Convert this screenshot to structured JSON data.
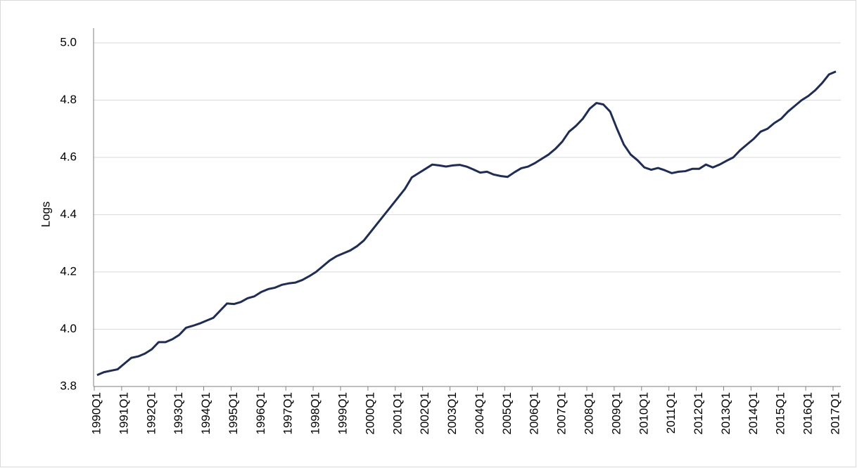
{
  "chart_data": {
    "type": "line",
    "y_label": "Logs",
    "categories": [
      "1990Q1",
      null,
      null,
      null,
      "1991Q1",
      null,
      null,
      null,
      "1992Q1",
      null,
      null,
      null,
      "1993Q1",
      null,
      null,
      null,
      "1994Q1",
      null,
      null,
      null,
      "1995Q1",
      null,
      null,
      null,
      "1996Q1",
      null,
      null,
      null,
      "1997Q1",
      null,
      null,
      null,
      "1998Q1",
      null,
      null,
      null,
      "1999Q1",
      null,
      null,
      null,
      "2000Q1",
      null,
      null,
      null,
      "2001Q1",
      null,
      null,
      null,
      "2002Q1",
      null,
      null,
      null,
      "2003Q1",
      null,
      null,
      null,
      "2004Q1",
      null,
      null,
      null,
      "2005Q1",
      null,
      null,
      null,
      "2006Q1",
      null,
      null,
      null,
      "2007Q1",
      null,
      null,
      null,
      "2008Q1",
      null,
      null,
      null,
      "2009Q1",
      null,
      null,
      null,
      "2010Q1",
      null,
      null,
      null,
      "2011Q1",
      null,
      null,
      null,
      "2012Q1",
      null,
      null,
      null,
      "2013Q1",
      null,
      null,
      null,
      "2014Q1",
      null,
      null,
      null,
      "2015Q1",
      null,
      null,
      null,
      "2016Q1",
      null,
      null,
      null,
      "2017Q1"
    ],
    "series": [
      {
        "color": "#1f2d55",
        "values": [
          3.84,
          3.85,
          3.855,
          3.86,
          3.88,
          3.9,
          3.905,
          3.915,
          3.93,
          3.955,
          3.955,
          3.965,
          3.98,
          4.005,
          4.012,
          4.02,
          4.03,
          4.04,
          4.065,
          4.09,
          4.088,
          4.095,
          4.108,
          4.115,
          4.13,
          4.14,
          4.145,
          4.155,
          4.16,
          4.163,
          4.172,
          4.185,
          4.2,
          4.22,
          4.24,
          4.255,
          4.265,
          4.275,
          4.29,
          4.31,
          4.34,
          4.37,
          4.4,
          4.43,
          4.46,
          4.49,
          4.53,
          4.545,
          4.56,
          4.575,
          4.572,
          4.568,
          4.572,
          4.574,
          4.568,
          4.558,
          4.547,
          4.55,
          4.54,
          4.535,
          4.532,
          4.548,
          4.562,
          4.568,
          4.58,
          4.595,
          4.61,
          4.63,
          4.655,
          4.69,
          4.71,
          4.735,
          4.77,
          4.79,
          4.785,
          4.76,
          4.7,
          4.645,
          4.61,
          4.59,
          4.565,
          4.557,
          4.563,
          4.555,
          4.545,
          4.55,
          4.552,
          4.56,
          4.56,
          4.575,
          4.565,
          4.575,
          4.588,
          4.6,
          4.625,
          4.645,
          4.665,
          4.69,
          4.7,
          4.72,
          4.735,
          4.76,
          4.78,
          4.8,
          4.815,
          4.835,
          4.86,
          4.89,
          4.9
        ]
      }
    ],
    "ylim": [
      3.8,
      5.0
    ],
    "yticks": [
      3.8,
      {
        "value": 4,
        "label": "4.0"
      },
      4.2,
      4.4,
      4.6,
      4.8,
      {
        "value": 5,
        "label": "5.0"
      }
    ],
    "grid": true
  }
}
